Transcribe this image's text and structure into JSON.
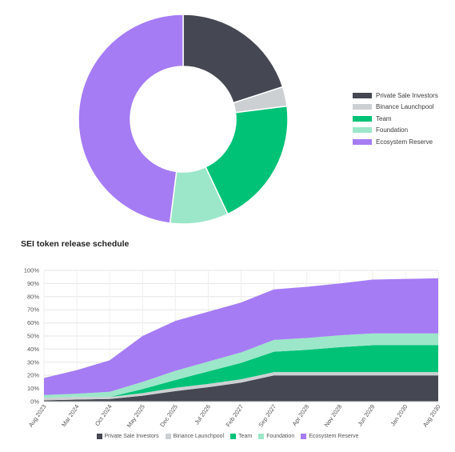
{
  "colors": {
    "private_sale": "#454852",
    "binance": "#cdd0d3",
    "team": "#00c277",
    "foundation": "#9ce7c9",
    "ecosystem": "#a57cf4"
  },
  "chart_data": [
    {
      "type": "pie",
      "variant": "donut",
      "slices": [
        {
          "name": "Private Sale Investors",
          "value": 20,
          "color": "#454852"
        },
        {
          "name": "Binance Launchpool",
          "value": 3,
          "color": "#cdd0d3"
        },
        {
          "name": "Team",
          "value": 20,
          "color": "#00c277"
        },
        {
          "name": "Foundation",
          "value": 9,
          "color": "#9ce7c9"
        },
        {
          "name": "Ecosystem Reserve",
          "value": 48,
          "color": "#a57cf4"
        }
      ],
      "legend": "right"
    },
    {
      "type": "area",
      "stacked": true,
      "title": "SEI token release schedule",
      "categories": [
        "Aug 2023",
        "Mar 2024",
        "Oct 2024",
        "May 2025",
        "Dec 2025",
        "Jul 2026",
        "Feb 2027",
        "Sep 2027",
        "Apr 2028",
        "Nov 2028",
        "Jun 2029",
        "Jan 2030",
        "Aug 2030"
      ],
      "ylim": [
        0,
        100
      ],
      "yticks": [
        "0%",
        "10%",
        "20%",
        "30%",
        "40%",
        "50%",
        "60%",
        "70%",
        "80%",
        "90%",
        "100%"
      ],
      "grid": true,
      "legend": "bottom",
      "series": [
        {
          "name": "Private Sale Investors",
          "color": "#454852",
          "values": [
            1,
            1.5,
            2,
            4.5,
            8,
            11,
            14.5,
            20,
            20,
            20,
            20,
            20,
            20
          ]
        },
        {
          "name": "Binance Launchpool",
          "color": "#cdd0d3",
          "values": [
            2,
            2,
            1.5,
            2,
            2.5,
            2.5,
            2.5,
            2.5,
            2.5,
            2.5,
            2.5,
            2.5,
            2.5
          ]
        },
        {
          "name": "Team",
          "color": "#00c277",
          "values": [
            0,
            0,
            0,
            3,
            6,
            9.5,
            12.5,
            15.5,
            17,
            19,
            20.5,
            20.5,
            20.5
          ]
        },
        {
          "name": "Foundation",
          "color": "#9ce7c9",
          "values": [
            2,
            2.5,
            4,
            5.5,
            7,
            7.5,
            8,
            9,
            9,
            9,
            9,
            9,
            9
          ]
        },
        {
          "name": "Ecosystem Reserve",
          "color": "#a57cf4",
          "values": [
            13,
            18,
            24,
            35,
            38,
            38,
            38,
            38.5,
            39,
            39.5,
            41,
            41.5,
            42
          ]
        }
      ]
    }
  ]
}
